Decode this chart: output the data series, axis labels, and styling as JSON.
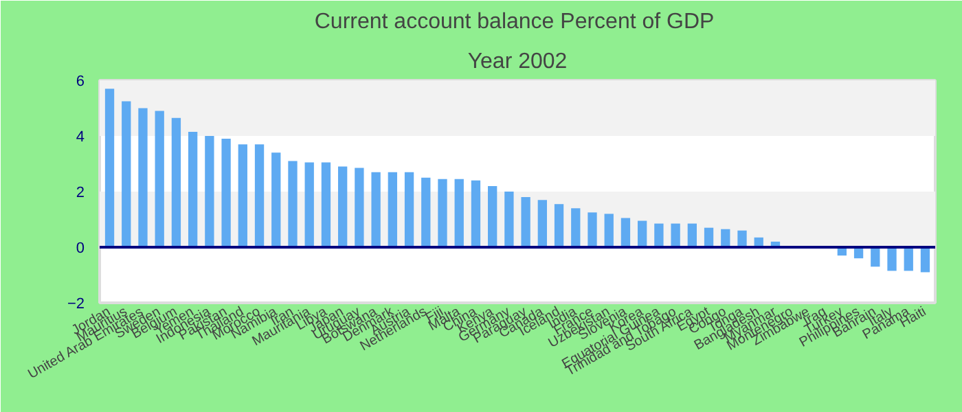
{
  "chart_data": {
    "type": "bar",
    "title": "Current account balance  Percent of GDP",
    "subtitle": "Year 2002",
    "categories": [
      "Jordan",
      "Mauritius",
      "United Arab Emirates",
      "Sweden",
      "Belgium",
      "Yemen",
      "Indonesia",
      "Pakistan",
      "Thailand",
      "Morocco",
      "Namibia",
      "Iran",
      "Mauritania",
      "Libya",
      "Japan",
      "Uruguay",
      "Botswana",
      "Denmark",
      "Austria",
      "Netherlands",
      "Fiji",
      "Malta",
      "China",
      "Kenya",
      "Germany",
      "Paraguay",
      "Canada",
      "Iceland",
      "India",
      "France",
      "Uzbekistan",
      "Slovenia",
      "Korea",
      "Equatorial Guinea",
      "Trinidad and Tobago",
      "South Africa",
      "Egypt",
      "Congo",
      "Tonga",
      "Bangladesh",
      "Myanmar",
      "Montenegro",
      "Zimbabwe",
      "Iraq",
      "Turkey",
      "Philippines",
      "Bahrain",
      "Italy",
      "Panama",
      "Haiti"
    ],
    "values": [
      5.7,
      5.25,
      5.0,
      4.9,
      4.65,
      4.15,
      4.0,
      3.9,
      3.7,
      3.7,
      3.4,
      3.1,
      3.05,
      3.05,
      2.9,
      2.85,
      2.7,
      2.7,
      2.7,
      2.5,
      2.45,
      2.45,
      2.4,
      2.2,
      2.0,
      1.8,
      1.7,
      1.55,
      1.4,
      1.25,
      1.2,
      1.05,
      0.95,
      0.85,
      0.85,
      0.85,
      0.7,
      0.65,
      0.6,
      0.35,
      0.2,
      null,
      null,
      null,
      -0.3,
      -0.4,
      -0.7,
      -0.85,
      -0.85,
      -0.9
    ],
    "color": "#5eaaf2",
    "ylim": [
      -2,
      6
    ],
    "yticks": [
      -2,
      0,
      2,
      4,
      6
    ],
    "ref_lines": [
      {
        "axis": "y",
        "value": 0,
        "color": "#000080"
      }
    ]
  }
}
